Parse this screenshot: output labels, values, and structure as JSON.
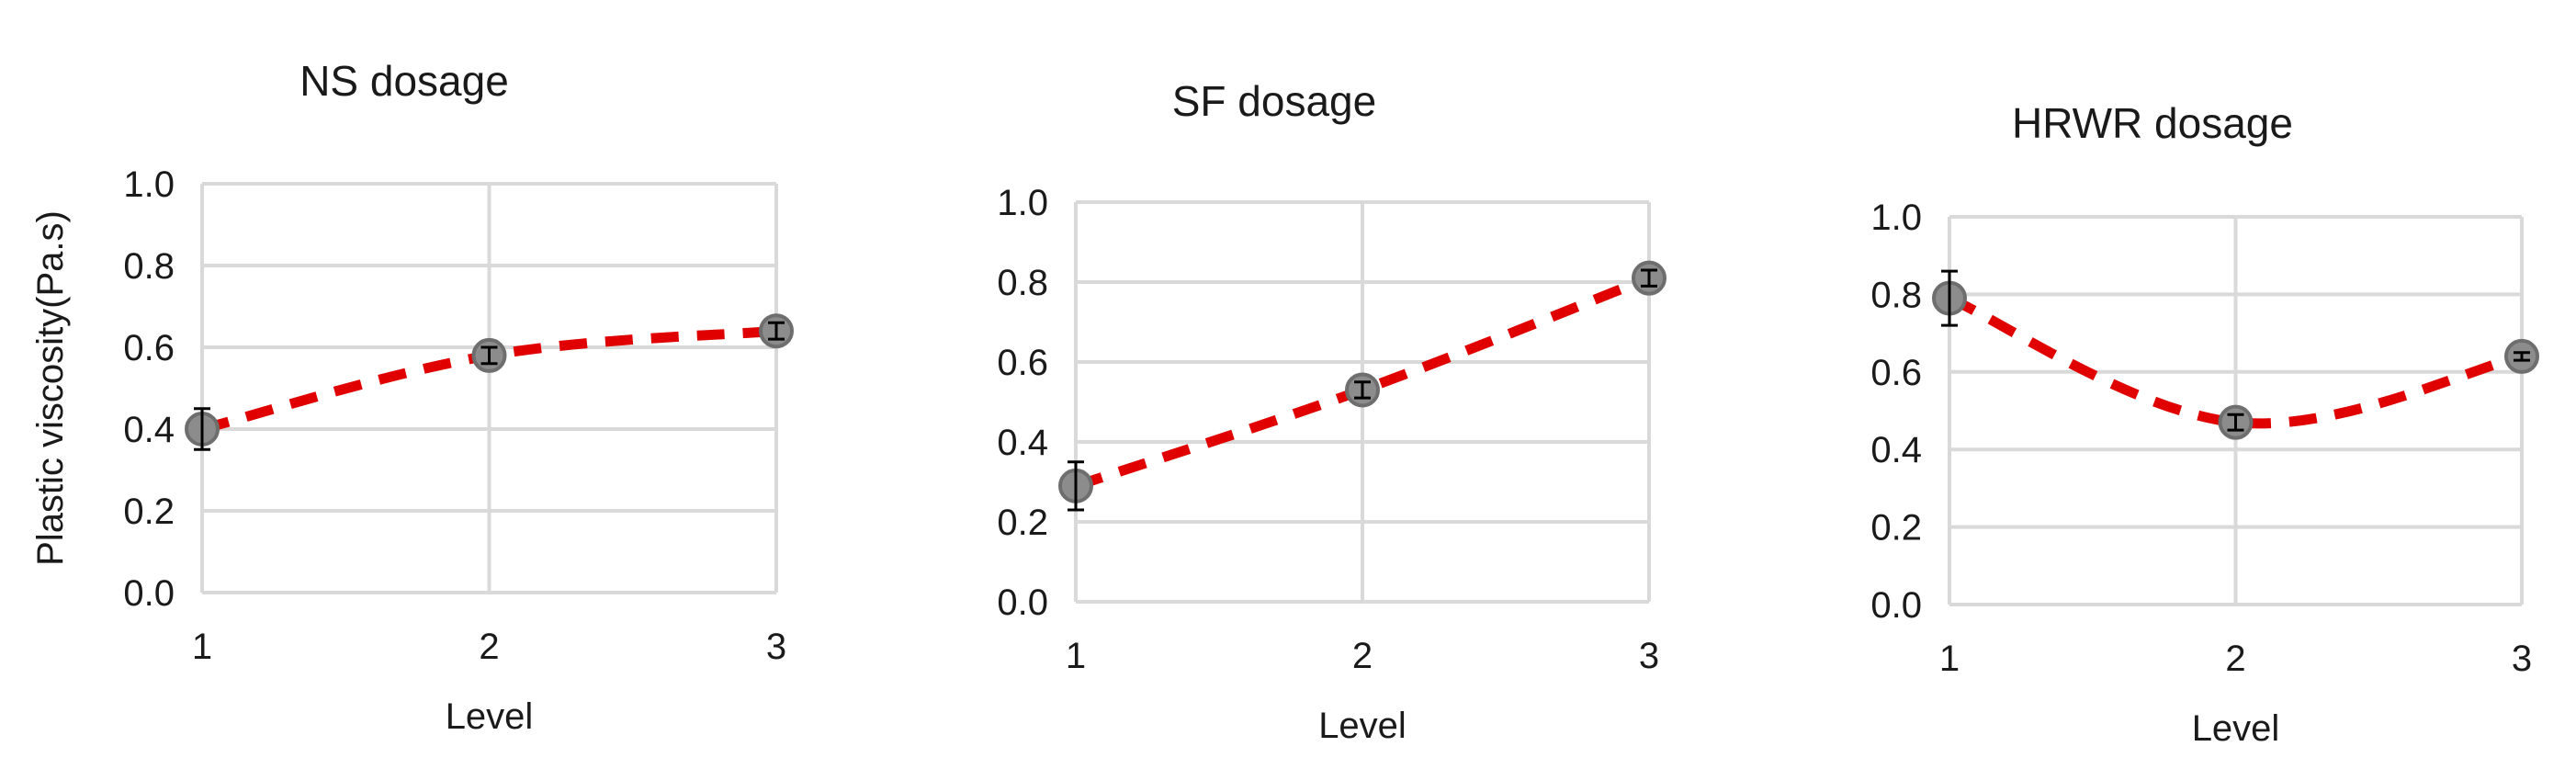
{
  "colors": {
    "line": "#e00000",
    "marker_fill": "#8c8c8c",
    "marker_stroke": "#6e6e6e",
    "grid": "#d9d9d9",
    "text": "#1a1a1a"
  },
  "chart_data": [
    {
      "type": "line",
      "title": "NS dosage",
      "xlabel": "Level",
      "ylabel": "Plastic viscosity(Pa.s)",
      "categories": [
        "1",
        "2",
        "3"
      ],
      "values": [
        0.4,
        0.58,
        0.64
      ],
      "error": [
        0.05,
        0.02,
        0.02
      ],
      "ylim": [
        0.0,
        1.0
      ],
      "yticks": [
        "0.0",
        "0.2",
        "0.4",
        "0.6",
        "0.8",
        "1.0"
      ],
      "grid": true,
      "line_style": "dashed smooth"
    },
    {
      "type": "line",
      "title": "SF dosage",
      "xlabel": "Level",
      "ylabel": "",
      "categories": [
        "1",
        "2",
        "3"
      ],
      "values": [
        0.29,
        0.53,
        0.81
      ],
      "error": [
        0.06,
        0.02,
        0.02
      ],
      "ylim": [
        0.0,
        1.0
      ],
      "yticks": [
        "0.0",
        "0.2",
        "0.4",
        "0.6",
        "0.8",
        "1.0"
      ],
      "grid": true,
      "line_style": "dashed smooth"
    },
    {
      "type": "line",
      "title": "HRWR dosage",
      "xlabel": "Level",
      "ylabel": "",
      "categories": [
        "1",
        "2",
        "3"
      ],
      "values": [
        0.79,
        0.47,
        0.64
      ],
      "error": [
        0.07,
        0.02,
        0.01
      ],
      "ylim": [
        0.0,
        1.0
      ],
      "yticks": [
        "0.0",
        "0.2",
        "0.4",
        "0.6",
        "0.8",
        "1.0"
      ],
      "grid": true,
      "line_style": "dashed smooth"
    }
  ]
}
